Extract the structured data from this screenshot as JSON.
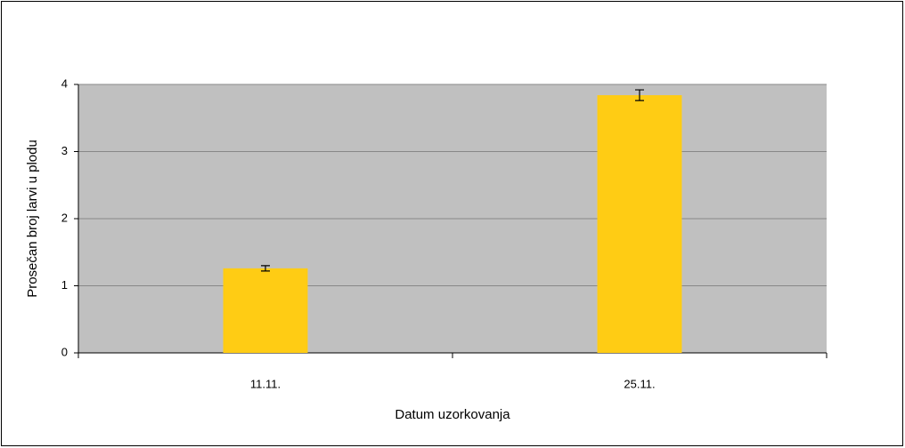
{
  "chart_data": {
    "type": "bar",
    "x_label": "Datum uzorkovanja",
    "y_label": "Prosečan broj larvi u plodu",
    "categories": [
      "11.11.",
      "25.11."
    ],
    "values": [
      1.26,
      3.84
    ],
    "errors": [
      0.04,
      0.08
    ],
    "color": "#ffcc14",
    "ylim": [
      0,
      4
    ],
    "yticks": [
      0,
      1,
      2,
      3,
      4
    ],
    "grid": true
  }
}
